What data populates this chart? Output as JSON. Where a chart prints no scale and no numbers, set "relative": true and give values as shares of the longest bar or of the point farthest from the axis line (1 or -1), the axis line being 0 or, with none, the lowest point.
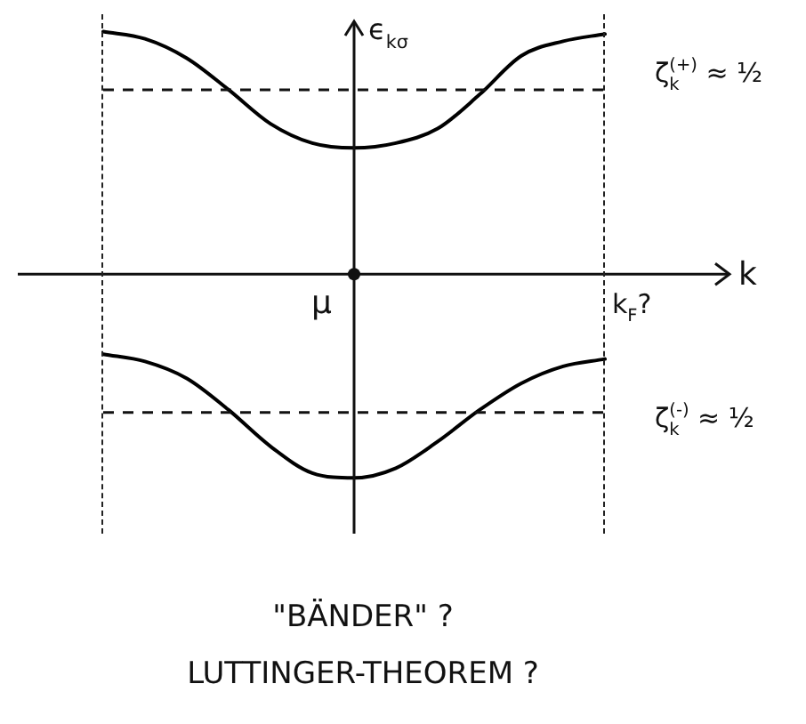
{
  "chart_data": {
    "type": "line",
    "relative": true,
    "xlabel": "k",
    "ylabel": "ϵ$_{kσ}$",
    "categories": [
      null,
      null,
      null,
      null,
      null,
      null,
      null,
      null,
      null,
      null,
      null,
      null,
      null
    ],
    "series": [
      {
        "color": "#000000",
        "values": [
          1.0,
          0.97,
          0.89,
          0.76,
          0.62,
          0.54,
          0.52,
          0.54,
          0.6,
          0.74,
          0.9,
          0.96,
          0.99
        ]
      },
      {
        "color": "#000000",
        "values": [
          -0.33,
          -0.36,
          -0.43,
          -0.56,
          -0.71,
          -0.82,
          -0.84,
          -0.8,
          -0.69,
          -0.56,
          -0.45,
          -0.38,
          -0.35
        ]
      }
    ],
    "ref_lines": [
      {
        "axis": "y",
        "value": 0.76,
        "line_style": "dashed"
      },
      {
        "axis": "y",
        "value": -0.57,
        "line_style": "dashed"
      }
    ],
    "annotations": [
      "μ",
      "k$_{F}$?",
      "ζ$^{(+)}$$_{k}$ ≈ ½",
      "ζ$^{(-)}$$_{k}$ ≈ ½",
      "\"BÄNDER\" ?",
      "LUTTINGER-THEOREM ?"
    ],
    "line_style": "solid"
  }
}
